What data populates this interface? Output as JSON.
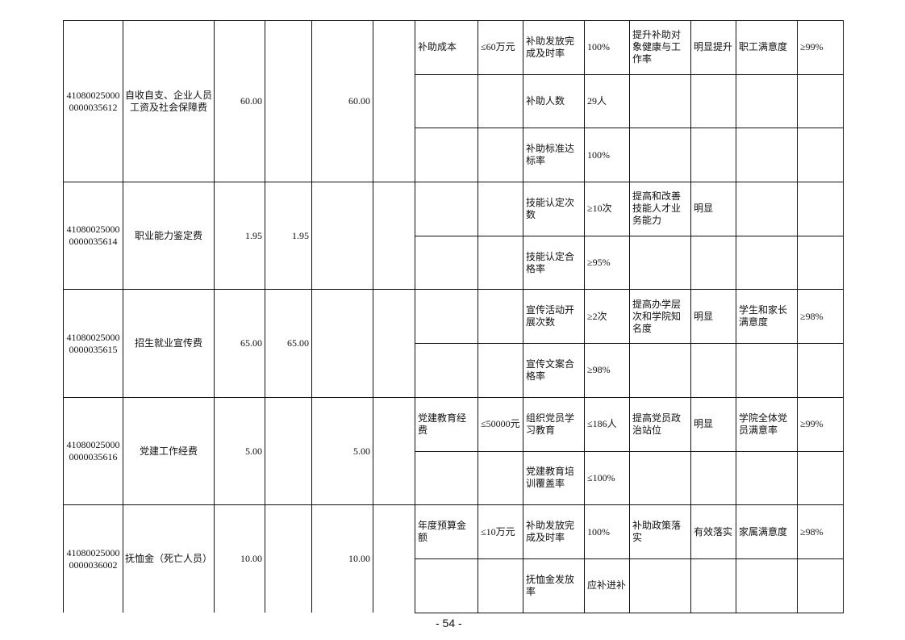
{
  "groups": [
    {
      "code": [
        "41080025000",
        "0000035612"
      ],
      "name": "自收自支、企业人员工资及社会保障费",
      "total": "60.00",
      "col4": "",
      "col5": "60.00",
      "col6": "",
      "rows": [
        [
          "补助成本",
          "≤60万元",
          "补助发放完成及时率",
          "100%",
          "提升补助对象健康与工作率",
          "明显提升",
          "职工满意度",
          "≥99%"
        ],
        [
          "",
          "",
          "补助人数",
          "29人",
          "",
          "",
          "",
          ""
        ],
        [
          "",
          "",
          "补助标准达标率",
          "100%",
          "",
          "",
          "",
          ""
        ]
      ]
    },
    {
      "code": [
        "41080025000",
        "0000035614"
      ],
      "name": "职业能力鉴定费",
      "total": "1.95",
      "col4": "1.95",
      "col5": "",
      "col6": "",
      "rows": [
        [
          "",
          "",
          "技能认定次数",
          "≥10次",
          "提高和改善技能人才业务能力",
          "明显",
          "",
          ""
        ],
        [
          "",
          "",
          "技能认定合格率",
          "≥95%",
          "",
          "",
          "",
          ""
        ]
      ]
    },
    {
      "code": [
        "41080025000",
        "0000035615"
      ],
      "name": "招生就业宣传费",
      "total": "65.00",
      "col4": "65.00",
      "col5": "",
      "col6": "",
      "rows": [
        [
          "",
          "",
          "宣传活动开展次数",
          "≥2次",
          "提高办学层次和学院知名度",
          "明显",
          "学生和家长满意度",
          "≥98%"
        ],
        [
          "",
          "",
          "宣传文案合格率",
          "≥98%",
          "",
          "",
          "",
          ""
        ]
      ]
    },
    {
      "code": [
        "41080025000",
        "0000035616"
      ],
      "name": "党建工作经费",
      "total": "5.00",
      "col4": "",
      "col5": "5.00",
      "col6": "",
      "rows": [
        [
          "党建教育经费",
          "≤50000元",
          "组织党员学习教育",
          "≤186人",
          "提高党员政治站位",
          "明显",
          "学院全体党员满意率",
          "≥99%"
        ],
        [
          "",
          "",
          "党建教育培训覆盖率",
          "≤100%",
          "",
          "",
          "",
          ""
        ]
      ]
    },
    {
      "code": [
        "41080025000",
        "0000036002"
      ],
      "name": "抚恤金（死亡人员）",
      "total": "10.00",
      "col4": "",
      "col5": "10.00",
      "col6": "",
      "rows": [
        [
          "年度预算金额",
          "≤10万元",
          "补助发放完成及时率",
          "100%",
          "补助政策落实",
          "有效落实",
          "家属满意度",
          "≥98%"
        ],
        [
          "",
          "",
          "抚恤金发放率",
          "应补进补",
          "",
          "",
          "",
          ""
        ]
      ]
    }
  ],
  "page_number": "- 54 -"
}
